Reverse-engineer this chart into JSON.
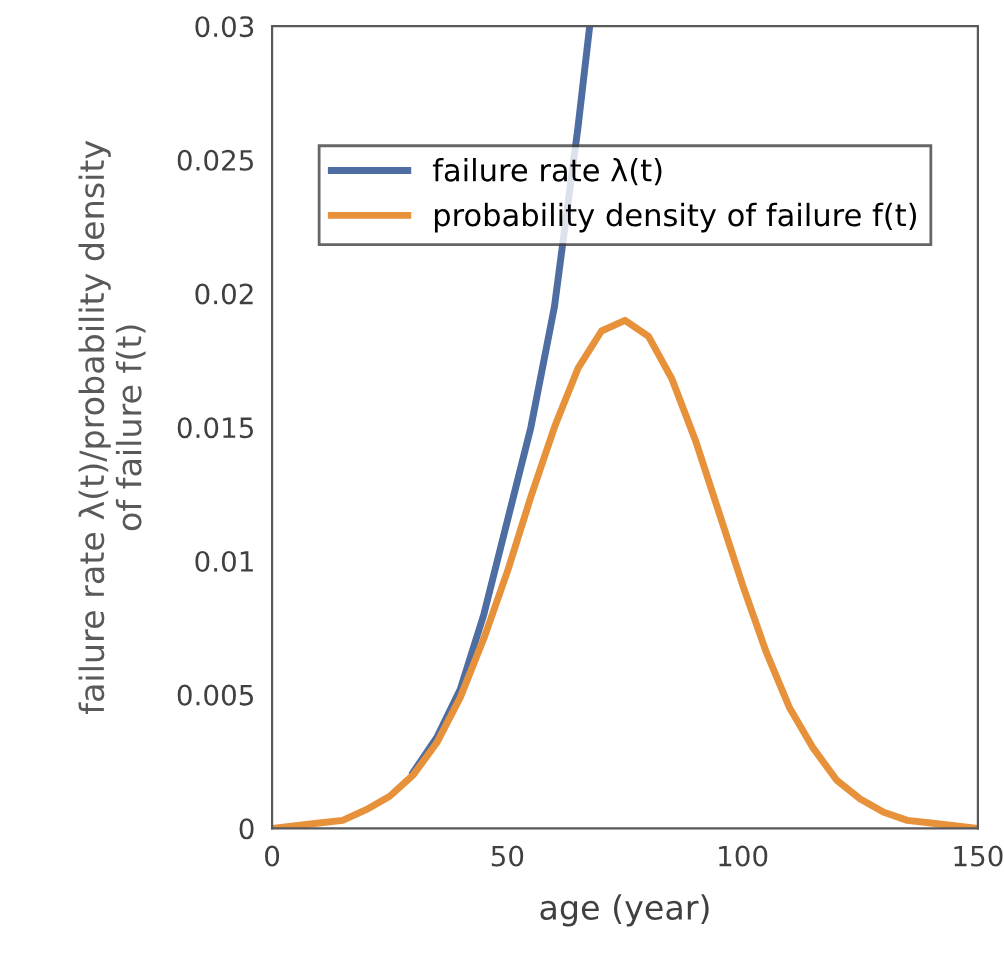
{
  "chart_data": {
    "type": "line",
    "xlabel": "age (year)",
    "ylabel": "failure rate λ(t)/probability density\nof failure f(t)",
    "xlim": [
      0,
      150
    ],
    "ylim": [
      0,
      0.03
    ],
    "xticks": [
      0,
      50,
      100,
      150
    ],
    "yticks": [
      0,
      0.005,
      0.01,
      0.015,
      0.02,
      0.025,
      0.03
    ],
    "grid": false,
    "legend": "top",
    "marker": "none",
    "line_style": "solid",
    "series": [
      {
        "name": "failure rate λ(t)",
        "color": "#4e6ea3",
        "x": [
          30,
          35,
          40,
          45,
          50,
          55,
          60,
          65,
          67.5
        ],
        "values": [
          0.0021,
          0.0034,
          0.0052,
          0.008,
          0.0115,
          0.015,
          0.0195,
          0.0262,
          0.03
        ]
      },
      {
        "name": "probability density of failure f(t)",
        "color": "#e8913b",
        "x": [
          0,
          5,
          10,
          15,
          20,
          25,
          30,
          35,
          40,
          45,
          50,
          55,
          60,
          65,
          70,
          75,
          80,
          85,
          90,
          95,
          100,
          105,
          110,
          115,
          120,
          125,
          130,
          135,
          140,
          145,
          150
        ],
        "values": [
          0,
          0.0001,
          0.0002,
          0.0003,
          0.0007,
          0.0012,
          0.002,
          0.0032,
          0.0049,
          0.0071,
          0.0096,
          0.0124,
          0.015,
          0.0172,
          0.0186,
          0.019,
          0.0184,
          0.0168,
          0.0145,
          0.0118,
          0.0091,
          0.0066,
          0.0045,
          0.003,
          0.0018,
          0.0011,
          0.0006,
          0.0003,
          0.0002,
          0.0001,
          0
        ]
      }
    ]
  }
}
